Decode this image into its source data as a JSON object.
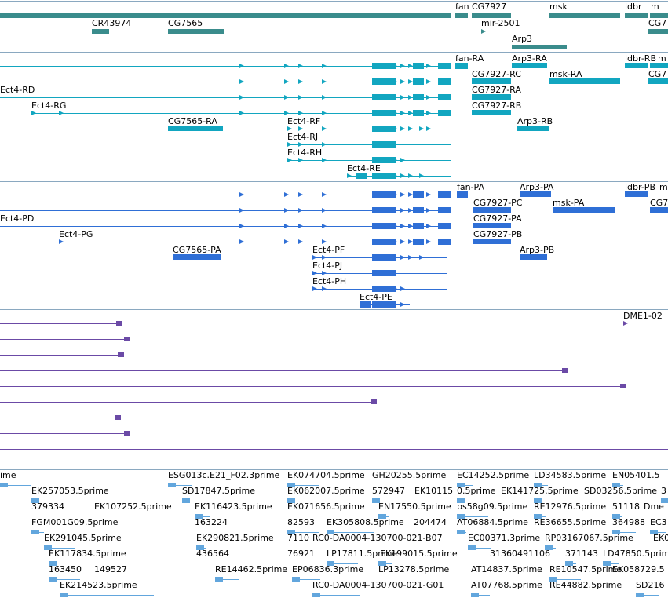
{
  "tracks": [
    {
      "id": "genes",
      "color": "#3a8c8c",
      "labels": [
        "fan",
        "CG7927",
        "msk",
        "ldbr",
        "m",
        "CR43974",
        "CG7565",
        "mir-2501",
        "CG7",
        "Arp3"
      ]
    },
    {
      "id": "transcripts",
      "color": "#12a6c0",
      "labels": [
        "fan-RA",
        "Arp3-RA",
        "ldbr-RB",
        "m",
        "CG7927-RC",
        "msk-RA",
        "CG7",
        "Ect4-RD",
        "CG7927-RA",
        "Ect4-RG",
        "CG7927-RB",
        "CG7565-RA",
        "Ect4-RF",
        "Arp3-RB",
        "Ect4-RJ",
        "Ect4-RH",
        "Ect4-RE"
      ]
    },
    {
      "id": "proteins",
      "color": "#2f6fd6",
      "labels": [
        "fan-PA",
        "Arp3-PA",
        "ldbr-PB",
        "m",
        "CG7927-PC",
        "msk-PA",
        "CG7",
        "Ect4-PD",
        "CG7927-PA",
        "Ect4-PG",
        "CG7927-PB",
        "CG7565-PA",
        "Ect4-PF",
        "Arp3-PB",
        "Ect4-PJ",
        "Ect4-PH",
        "Ect4-PE"
      ]
    },
    {
      "id": "alignments",
      "color": "#6b4aa6",
      "labels": [
        "DME1-02"
      ]
    },
    {
      "id": "ests",
      "color": "#62a6dd",
      "labels": [
        "ime",
        "ESG013c.E21_F02.3prime",
        "EK074704.5prime",
        "GH20255.5prime",
        "EC14252.5prime",
        "LD34583.5prime",
        "EN05401.5",
        "EK257053.5prime",
        "SD17847.5prime",
        "EK062007.5prime",
        "572947",
        "EK10115",
        "0.5prime",
        "EK141725.5prime",
        "SD03256.5prime",
        "3",
        "379334",
        "EK107252.5prime",
        "EK116423.5prime",
        "EK071656.5prime",
        "EN17550.5prime",
        "bs58g09.5prime",
        "RE12976.5prime",
        "51118",
        "Dme",
        "FGM001G09.5prime",
        "163224",
        "82593",
        "EK305808.5prime",
        "204474",
        "AT06884.5prime",
        "RE36655.5prime",
        "364988",
        "EC3",
        "EK291045.5prime",
        "EK290821.5prime",
        "7110",
        "RC0-DA0004-130700-021-B07",
        "EC00371.3prime",
        "RP03167067.5prime",
        "EK0",
        "EK117834.5prime",
        "436564",
        "76921",
        "LP17811.5prime",
        "EK199015.5prime",
        "31360491106",
        "371143",
        "LD47850.5prime",
        "163450",
        "149527",
        "RE14462.5prime",
        "EP06836.3prime",
        "LP13278.5prime",
        "AT14837.5prime",
        "RE10547.5prime",
        "EK058729.5",
        "EK214523.5prime",
        "RC0-DA0004-130700-021-G01",
        "AT07768.5prime",
        "RE44882.5prime",
        "SD216"
      ]
    }
  ]
}
